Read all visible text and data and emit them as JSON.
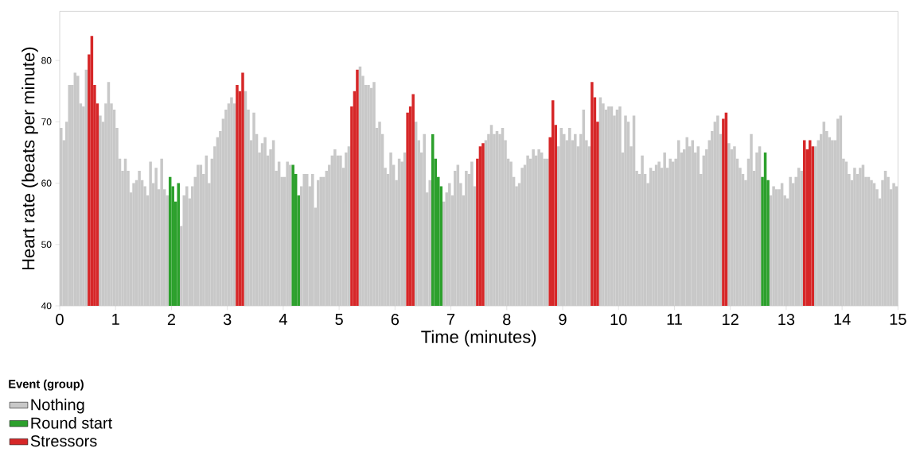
{
  "chart_data": {
    "type": "bar",
    "xlabel": "Time (minutes)",
    "ylabel": "Heart rate (beats per minute)",
    "legend_title": "Event (group)",
    "legend": "bottom left",
    "xlim": [
      0,
      15
    ],
    "ylim": [
      40,
      88
    ],
    "xticks": [
      0,
      1,
      2,
      3,
      4,
      5,
      6,
      7,
      8,
      9,
      10,
      11,
      12,
      13,
      14,
      15
    ],
    "yticks": [
      40,
      50,
      60,
      70,
      80
    ],
    "series": [
      {
        "name": "Nothing",
        "color": "#c8c8c8",
        "x": [
          0,
          0.05,
          0.1,
          0.15,
          0.2,
          0.25,
          0.3,
          0.35,
          0.4,
          0.45,
          0.7,
          0.75,
          0.8,
          0.85,
          0.9,
          0.95,
          1,
          1.05,
          1.1,
          1.15,
          1.2,
          1.25,
          1.3,
          1.35,
          1.4,
          1.45,
          1.5,
          1.55,
          1.6,
          1.65,
          1.7,
          1.75,
          1.8,
          1.85,
          1.9,
          2.15,
          2.2,
          2.25,
          2.3,
          2.35,
          2.4,
          2.45,
          2.5,
          2.55,
          2.6,
          2.65,
          2.7,
          2.75,
          2.8,
          2.85,
          2.9,
          2.95,
          3,
          3.05,
          3.1,
          3.3,
          3.35,
          3.4,
          3.45,
          3.5,
          3.55,
          3.6,
          3.65,
          3.7,
          3.75,
          3.8,
          3.85,
          3.9,
          3.95,
          4,
          4.05,
          4.1,
          4.3,
          4.35,
          4.4,
          4.45,
          4.5,
          4.55,
          4.6,
          4.65,
          4.7,
          4.75,
          4.8,
          4.85,
          4.9,
          4.95,
          5,
          5.05,
          5.1,
          5.15,
          5.35,
          5.4,
          5.45,
          5.5,
          5.55,
          5.6,
          5.65,
          5.7,
          5.75,
          5.8,
          5.85,
          5.9,
          5.95,
          6,
          6.05,
          6.1,
          6.15,
          6.35,
          6.4,
          6.45,
          6.5,
          6.55,
          6.6,
          6.85,
          6.9,
          6.95,
          7,
          7.05,
          7.1,
          7.15,
          7.2,
          7.25,
          7.3,
          7.35,
          7.4,
          7.6,
          7.65,
          7.7,
          7.75,
          7.8,
          7.85,
          7.9,
          7.95,
          8,
          8.05,
          8.1,
          8.15,
          8.2,
          8.25,
          8.3,
          8.35,
          8.4,
          8.45,
          8.5,
          8.55,
          8.6,
          8.65,
          8.7,
          8.9,
          8.95,
          9,
          9.05,
          9.1,
          9.15,
          9.2,
          9.25,
          9.3,
          9.35,
          9.4,
          9.45,
          9.65,
          9.7,
          9.75,
          9.8,
          9.85,
          9.9,
          9.95,
          10,
          10.05,
          10.1,
          10.15,
          10.2,
          10.25,
          10.3,
          10.35,
          10.4,
          10.45,
          10.5,
          10.55,
          10.6,
          10.65,
          10.7,
          10.75,
          10.8,
          10.85,
          10.9,
          10.95,
          11,
          11.05,
          11.1,
          11.15,
          11.2,
          11.25,
          11.3,
          11.35,
          11.4,
          11.45,
          11.5,
          11.55,
          11.6,
          11.65,
          11.7,
          11.75,
          11.8,
          11.95,
          12,
          12.05,
          12.1,
          12.15,
          12.2,
          12.25,
          12.3,
          12.35,
          12.4,
          12.45,
          12.5,
          12.7,
          12.75,
          12.8,
          12.85,
          12.9,
          12.95,
          13,
          13.05,
          13.1,
          13.15,
          13.2,
          13.25,
          13.5,
          13.55,
          13.6,
          13.65,
          13.7,
          13.75,
          13.8,
          13.85,
          13.9,
          13.95,
          14,
          14.05,
          14.1,
          14.15,
          14.2,
          14.25,
          14.3,
          14.35,
          14.4,
          14.45,
          14.5,
          14.55,
          14.6,
          14.65,
          14.7,
          14.75,
          14.8,
          14.85,
          14.9,
          14.95
        ],
        "values": [
          69,
          67,
          70,
          76,
          76,
          78,
          77.5,
          73,
          72.5,
          78.5,
          71,
          70,
          73,
          76.5,
          73,
          72,
          69,
          64,
          62,
          64,
          62,
          58.5,
          60,
          60.5,
          62,
          60.5,
          59.5,
          58,
          63.5,
          60,
          62.5,
          59,
          64,
          59,
          58,
          53,
          58,
          59.5,
          57.5,
          59.5,
          61,
          63,
          63,
          61.5,
          64.5,
          60,
          64,
          66,
          67.5,
          68.5,
          70.5,
          72,
          73,
          74,
          73,
          75,
          72,
          67,
          71.5,
          68,
          65,
          66.5,
          67.5,
          64.5,
          65.5,
          67,
          62,
          63.5,
          61,
          61,
          63.5,
          63,
          59.5,
          61.5,
          61.5,
          59.5,
          61.5,
          56,
          60.5,
          61,
          61,
          62,
          63,
          64.5,
          65.5,
          64.5,
          64.5,
          62.5,
          65,
          66,
          79,
          77.5,
          76,
          76,
          75.5,
          76.5,
          69,
          70,
          68,
          62.5,
          61.5,
          65,
          63,
          60.5,
          64,
          63.5,
          65,
          70,
          67,
          65,
          68,
          58.5,
          60.5,
          57,
          58.5,
          60,
          58,
          62,
          63,
          60,
          58,
          62,
          61.5,
          63.5,
          59.5,
          67,
          68,
          69.5,
          68,
          68.5,
          68,
          69,
          67,
          64,
          63.5,
          61,
          59.5,
          60,
          62.5,
          63,
          64.5,
          64,
          65.5,
          64.5,
          65.5,
          65,
          64,
          64,
          66,
          69,
          68,
          67,
          69,
          67,
          68,
          66,
          68,
          72,
          67,
          66,
          74,
          73,
          72,
          72.5,
          72.5,
          71,
          72,
          72.5,
          65,
          71,
          70,
          66,
          71,
          62,
          61.5,
          64.5,
          61.5,
          60,
          62.5,
          62,
          63,
          63.5,
          62.5,
          65,
          62.5,
          64,
          63.5,
          64,
          67,
          65,
          65.5,
          67.5,
          66,
          67,
          65,
          66,
          61.5,
          64.5,
          65.5,
          67,
          68.5,
          70,
          71,
          68,
          66.5,
          65.5,
          66,
          64,
          62.5,
          61.5,
          60.5,
          64,
          68,
          62,
          65,
          66,
          58,
          59.5,
          59,
          59,
          60,
          58,
          57.5,
          61,
          60,
          61,
          62.5,
          62,
          66,
          67,
          68,
          70,
          68.5,
          67.5,
          67,
          67,
          70.5,
          71,
          64,
          63.5,
          61.5,
          60.5,
          62.5,
          61.5,
          62.5,
          63,
          61,
          61,
          60.5,
          60,
          59,
          57.5,
          60.5,
          62,
          61,
          59,
          60,
          59.5
        ]
      },
      {
        "name": "Round start",
        "color": "#2ca02c",
        "x": [
          1.95,
          2,
          2.05,
          2.1,
          4.15,
          4.2,
          4.25,
          6.65,
          6.7,
          6.75,
          6.8,
          12.55,
          12.6,
          12.65
        ],
        "values": [
          61,
          59.5,
          57,
          60,
          63,
          61.5,
          58,
          68,
          64,
          61,
          59.5,
          61,
          65,
          60.5
        ]
      },
      {
        "name": "Stressors",
        "color": "#d62728",
        "x": [
          0.5,
          0.55,
          0.6,
          0.65,
          3.15,
          3.2,
          3.25,
          5.2,
          5.25,
          5.3,
          6.2,
          6.25,
          6.3,
          7.45,
          7.5,
          7.55,
          8.75,
          8.8,
          8.85,
          9.5,
          9.55,
          9.6,
          11.85,
          11.9,
          13.3,
          13.35,
          13.4,
          13.45
        ],
        "values": [
          81,
          84,
          76,
          73,
          76,
          75,
          78,
          72.5,
          75,
          78.5,
          71.5,
          72.5,
          74.5,
          64,
          66,
          66.5,
          67.5,
          73.5,
          69.5,
          76.5,
          74,
          70,
          70.5,
          71.5,
          67,
          65.5,
          67,
          66
        ]
      }
    ]
  }
}
